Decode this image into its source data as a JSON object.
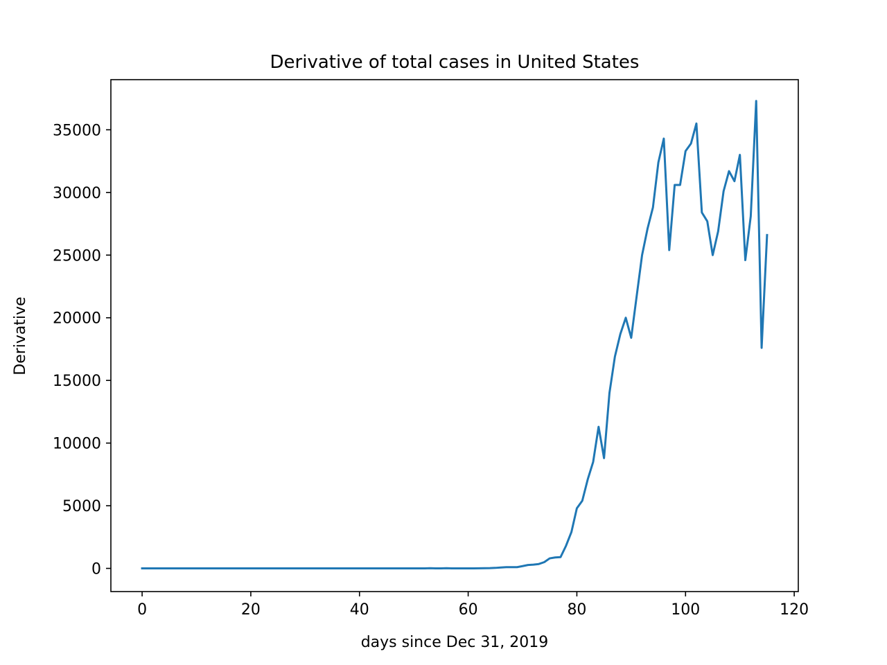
{
  "chart_data": {
    "type": "line",
    "title": "Derivative of total cases in United States",
    "xlabel": "days since Dec 31, 2019",
    "ylabel": "Derivative",
    "xlim": [
      -5.75,
      120.75
    ],
    "ylim": [
      -1850,
      39000
    ],
    "xticks": [
      0,
      20,
      40,
      60,
      80,
      100,
      120
    ],
    "yticks": [
      0,
      5000,
      10000,
      15000,
      20000,
      25000,
      30000,
      35000
    ],
    "grid": false,
    "legend": "none",
    "series": [
      {
        "color": "#1f77b4",
        "x": [
          0,
          1,
          2,
          3,
          4,
          5,
          6,
          7,
          8,
          9,
          10,
          11,
          12,
          13,
          14,
          15,
          16,
          17,
          18,
          19,
          20,
          21,
          22,
          23,
          24,
          25,
          26,
          27,
          28,
          29,
          30,
          31,
          32,
          33,
          34,
          35,
          36,
          37,
          38,
          39,
          40,
          41,
          42,
          43,
          44,
          45,
          46,
          47,
          48,
          49,
          50,
          51,
          52,
          53,
          54,
          55,
          56,
          57,
          58,
          59,
          60,
          61,
          62,
          63,
          64,
          65,
          66,
          67,
          68,
          69,
          70,
          71,
          72,
          73,
          74,
          75,
          76,
          77,
          78,
          79,
          80,
          81,
          82,
          83,
          84,
          85,
          86,
          87,
          88,
          89,
          90,
          91,
          92,
          93,
          94,
          95,
          96,
          97,
          98,
          99,
          100,
          101,
          102,
          103,
          104,
          105,
          106,
          107,
          108,
          109,
          110,
          111,
          112,
          113,
          114,
          115
        ],
        "y": [
          0,
          0,
          0,
          0,
          0,
          0,
          0,
          0,
          0,
          0,
          0,
          0,
          0,
          0,
          0,
          0,
          0,
          0,
          0,
          0,
          0,
          0,
          0,
          0,
          0,
          0,
          0,
          0,
          0,
          0,
          0,
          0,
          0,
          0,
          0,
          0,
          0,
          0,
          0,
          0,
          0,
          0,
          0,
          0,
          0,
          0,
          0,
          0,
          0,
          0,
          0,
          0,
          0,
          15,
          0,
          0,
          15,
          0,
          0,
          0,
          0,
          0,
          10,
          15,
          20,
          40,
          70,
          100,
          100,
          100,
          180,
          270,
          300,
          350,
          500,
          800,
          870,
          900,
          1800,
          2900,
          4800,
          5400,
          7100,
          8500,
          11300,
          8800,
          14000,
          16900,
          18700,
          20000,
          18400,
          21700,
          25000,
          27100,
          28800,
          32400,
          34300,
          25400,
          30600,
          30600,
          33300,
          33900,
          35500,
          28400,
          27700,
          25000,
          26900,
          30100,
          31700,
          30900,
          33000,
          24600,
          28100,
          37300,
          17600,
          26600
        ]
      }
    ]
  }
}
